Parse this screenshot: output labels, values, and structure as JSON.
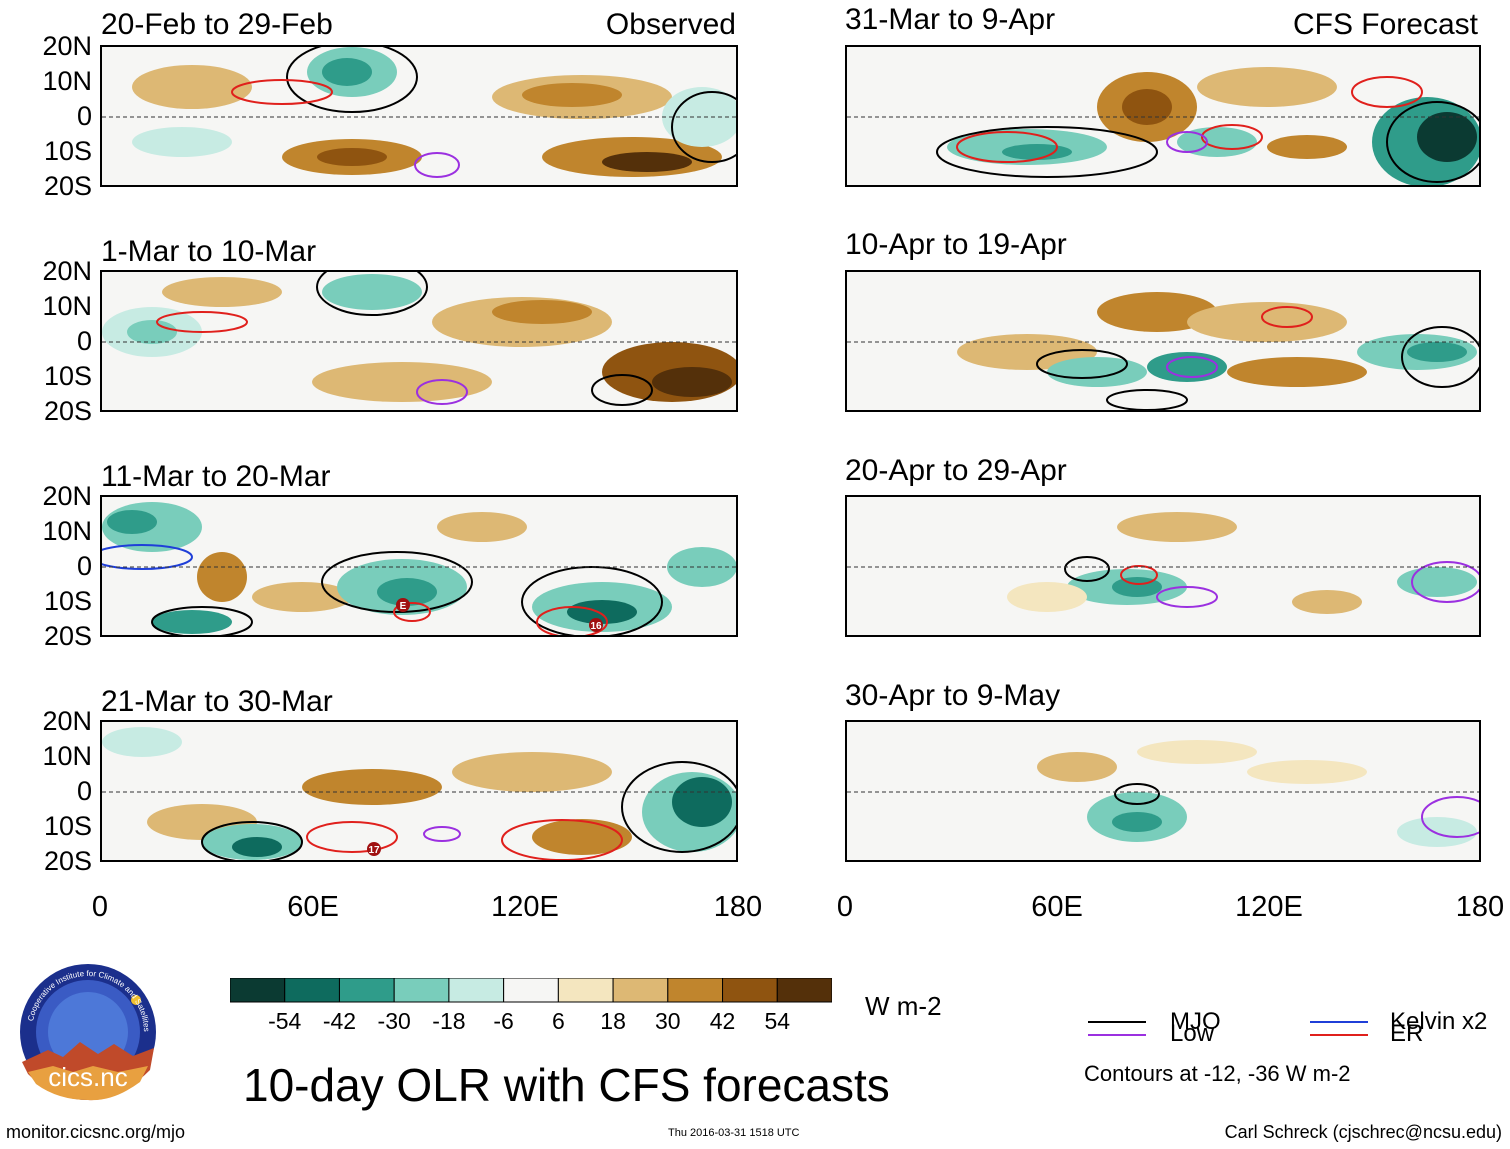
{
  "main_title": "10-day OLR with CFS forecasts",
  "left_column_tag": "Observed",
  "right_column_tag": "CFS Forecast",
  "panels_left": [
    {
      "title": "20-Feb to 29-Feb"
    },
    {
      "title": "1-Mar to 10-Mar"
    },
    {
      "title": "11-Mar to 20-Mar"
    },
    {
      "title": "21-Mar to 30-Mar"
    }
  ],
  "panels_right": [
    {
      "title": "31-Mar to 9-Apr"
    },
    {
      "title": "10-Apr to 19-Apr"
    },
    {
      "title": "20-Apr to 29-Apr"
    },
    {
      "title": "30-Apr to 9-May"
    }
  ],
  "lat_labels": [
    "20N",
    "10N",
    "0",
    "10S",
    "20S"
  ],
  "lon_labels": [
    "0",
    "60E",
    "120E",
    "180"
  ],
  "storm_labels": [
    "E",
    "16",
    "17"
  ],
  "colorbar": {
    "unit": "W m-2",
    "colors": [
      "#0b3a32",
      "#0e6b5e",
      "#2f9c8a",
      "#79cdbb",
      "#c7ebe3",
      "#f6f6f4",
      "#f4e6bf",
      "#ddb874",
      "#c0852d",
      "#8f5410",
      "#54300a"
    ],
    "tick_labels": [
      "-54",
      "-42",
      "-30",
      "-18",
      "-6",
      "6",
      "18",
      "30",
      "42",
      "54"
    ]
  },
  "legend": {
    "items": [
      {
        "label": "MJO",
        "color": "#000000"
      },
      {
        "label": "Kelvin x2",
        "color": "#1f3fd8"
      },
      {
        "label": "Low",
        "color": "#9b30e0"
      },
      {
        "label": "ER",
        "color": "#e0201c"
      }
    ],
    "note": "Contours at -12, -36 W m-2"
  },
  "logo": {
    "text": "cics.nc",
    "ring_text": "Cooperative Institute for Climate and Satellites"
  },
  "footer": {
    "left": "monitor.cicsnc.org/mjo",
    "center": "Thu 2016-03-31 1518 UTC",
    "right": "Carl Schreck (cjschrec@ncsu.edu)"
  }
}
